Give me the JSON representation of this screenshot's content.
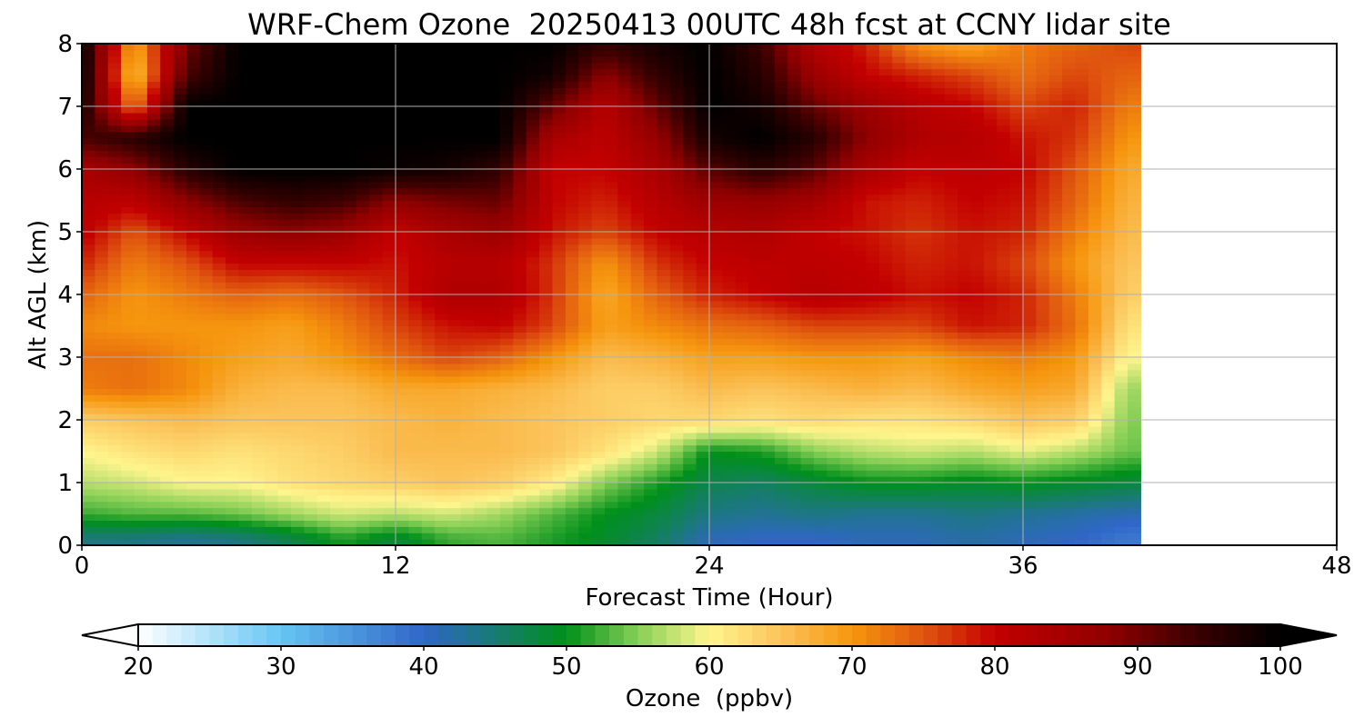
{
  "chart_data": {
    "type": "heatmap",
    "title": "WRF-Chem Ozone  20250413 00UTC 48h fcst at CCNY lidar site",
    "xlabel": "Forecast Time (Hour)",
    "ylabel": "Alt AGL (km)",
    "xlim": [
      0,
      48
    ],
    "ylim": [
      0,
      8
    ],
    "x_ticks": [
      "0",
      "12",
      "24",
      "36",
      "48"
    ],
    "y_ticks": [
      "0",
      "1",
      "2",
      "3",
      "4",
      "5",
      "6",
      "7",
      "8"
    ],
    "grid": true,
    "value_unit": "ppbv",
    "data_valid_until_hour": 40.5,
    "time_hours": [
      0,
      2,
      4,
      6,
      8,
      10,
      12,
      14,
      16,
      18,
      20,
      22,
      24,
      26,
      28,
      30,
      32,
      34,
      36,
      38,
      40
    ],
    "altitudes_km": [
      0.1,
      0.5,
      1.0,
      1.5,
      2.0,
      2.5,
      3.0,
      3.5,
      4.0,
      4.5,
      5.0,
      5.5,
      6.0,
      6.5,
      7.0,
      7.5,
      8.0
    ],
    "ozone_ppbv": [
      [
        44,
        44,
        43,
        44,
        47,
        51,
        48,
        52,
        53,
        51,
        49,
        46,
        41,
        40,
        40,
        41,
        41,
        42,
        41,
        40,
        38
      ],
      [
        52,
        53,
        53,
        54,
        56,
        58,
        57,
        58,
        56,
        53,
        50,
        48,
        44,
        43,
        44,
        43,
        43,
        44,
        43,
        42,
        41
      ],
      [
        57,
        58,
        60,
        60,
        62,
        63,
        64,
        65,
        64,
        61,
        55,
        51,
        47,
        46,
        48,
        50,
        50,
        49,
        50,
        49,
        48
      ],
      [
        60,
        62,
        63,
        62,
        63,
        64,
        66,
        66,
        66,
        65,
        62,
        58,
        50,
        51,
        55,
        57,
        58,
        57,
        59,
        57,
        54
      ],
      [
        64,
        65,
        66,
        65,
        65,
        65,
        66,
        67,
        66,
        65,
        64,
        63,
        63,
        62,
        63,
        62,
        62,
        63,
        65,
        64,
        55
      ],
      [
        72,
        73,
        71,
        67,
        66,
        66,
        68,
        68,
        67,
        66,
        64,
        64,
        66,
        65,
        66,
        67,
        66,
        68,
        69,
        68,
        56
      ],
      [
        73,
        73,
        71,
        69,
        68,
        70,
        73,
        76,
        74,
        70,
        66,
        67,
        69,
        69,
        70,
        70,
        69,
        71,
        72,
        70,
        60
      ],
      [
        71,
        70,
        70,
        70,
        69,
        72,
        76,
        79,
        80,
        76,
        69,
        71,
        73,
        74,
        76,
        76,
        76,
        79,
        78,
        73,
        62
      ],
      [
        74,
        70,
        72,
        74,
        73,
        75,
        78,
        83,
        83,
        77,
        68,
        74,
        78,
        80,
        82,
        81,
        79,
        80,
        78,
        72,
        64
      ],
      [
        78,
        72,
        75,
        80,
        80,
        80,
        79,
        82,
        82,
        77,
        70,
        77,
        80,
        81,
        81,
        80,
        78,
        79,
        76,
        70,
        65
      ],
      [
        81,
        75,
        80,
        86,
        88,
        86,
        80,
        84,
        86,
        79,
        76,
        80,
        82,
        83,
        80,
        79,
        77,
        79,
        78,
        72,
        66
      ],
      [
        82,
        81,
        88,
        93,
        95,
        94,
        88,
        90,
        91,
        80,
        78,
        82,
        86,
        87,
        85,
        79,
        78,
        80,
        79,
        74,
        67
      ],
      [
        84,
        88,
        96,
        100,
        100,
        100,
        99,
        98,
        95,
        80,
        80,
        84,
        92,
        96,
        92,
        84,
        80,
        81,
        80,
        75,
        68
      ],
      [
        93,
        96,
        100,
        100,
        100,
        100,
        100,
        100,
        100,
        84,
        81,
        87,
        98,
        100,
        96,
        88,
        83,
        82,
        79,
        77,
        70
      ],
      [
        98,
        72,
        100,
        100,
        100,
        100,
        100,
        100,
        100,
        91,
        82,
        91,
        100,
        98,
        91,
        86,
        82,
        80,
        76,
        78,
        72
      ],
      [
        100,
        65,
        93,
        100,
        100,
        100,
        100,
        100,
        100,
        98,
        88,
        95,
        100,
        96,
        86,
        80,
        78,
        76,
        73,
        76,
        74
      ],
      [
        100,
        68,
        90,
        100,
        100,
        100,
        100,
        100,
        100,
        100,
        95,
        98,
        100,
        94,
        82,
        78,
        70,
        68,
        72,
        74,
        76
      ]
    ],
    "colorbar": {
      "label": "Ozone  (ppbv)",
      "min": 20,
      "max": 100,
      "ticks": [
        "20",
        "30",
        "40",
        "50",
        "60",
        "70",
        "80",
        "90",
        "100"
      ],
      "extend": "both",
      "color_stops": [
        {
          "value": 20,
          "color": "#ffffff"
        },
        {
          "value": 30,
          "color": "#66c6f3"
        },
        {
          "value": 40,
          "color": "#3066c8"
        },
        {
          "value": 50,
          "color": "#00901a"
        },
        {
          "value": 55,
          "color": "#87cf56"
        },
        {
          "value": 60,
          "color": "#fff58d"
        },
        {
          "value": 65,
          "color": "#fbc45b"
        },
        {
          "value": 70,
          "color": "#f6960e"
        },
        {
          "value": 75,
          "color": "#e0560f"
        },
        {
          "value": 80,
          "color": "#c30000"
        },
        {
          "value": 88,
          "color": "#8f0000"
        },
        {
          "value": 94,
          "color": "#3b0000"
        },
        {
          "value": 100,
          "color": "#000000"
        }
      ]
    }
  }
}
